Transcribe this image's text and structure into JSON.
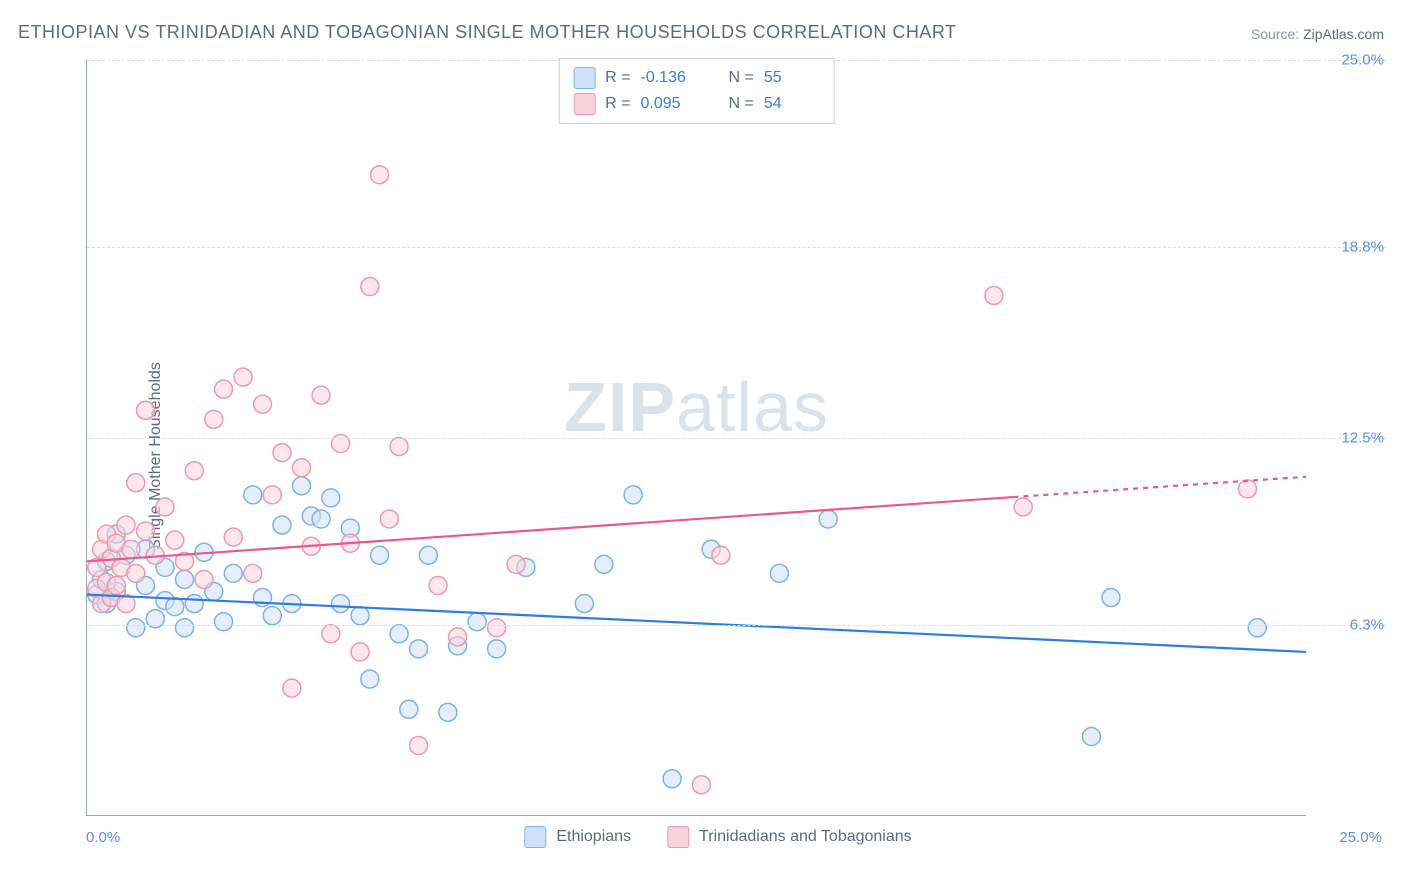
{
  "title": "ETHIOPIAN VS TRINIDADIAN AND TOBAGONIAN SINGLE MOTHER HOUSEHOLDS CORRELATION CHART",
  "source_label": "Source: ",
  "source_value": "ZipAtlas.com",
  "ylabel": "Single Mother Households",
  "watermark_a": "ZIP",
  "watermark_b": "atlas",
  "chart": {
    "type": "scatter",
    "xlim": [
      0,
      25
    ],
    "ylim": [
      0,
      25
    ],
    "yticks": [
      6.3,
      12.5,
      18.8,
      25.0
    ],
    "ytick_labels": [
      "6.3%",
      "12.5%",
      "18.8%",
      "25.0%"
    ],
    "xtick_min_label": "0.0%",
    "xtick_max_label": "25.0%",
    "grid_color": "#d9dee4",
    "axis_color": "#9aa6b2",
    "background_color": "#ffffff",
    "marker_radius": 9,
    "marker_stroke_width": 1.5,
    "series": [
      {
        "name": "Ethiopians",
        "fill": "#cfe2f7",
        "stroke": "#7fb1e8",
        "fill_opacity": 0.55,
        "r_label": "R = ",
        "r_value": "-0.136",
        "n_label": "N = ",
        "n_value": "55",
        "trend": {
          "y_at_x0": 7.3,
          "y_at_x25": 5.4,
          "stroke": "#2f7ed8",
          "width": 2.2,
          "solid_until_x": 25
        },
        "points": [
          [
            0.2,
            7.3
          ],
          [
            0.3,
            7.8
          ],
          [
            0.4,
            7.0
          ],
          [
            0.4,
            8.4
          ],
          [
            0.5,
            7.2
          ],
          [
            0.6,
            7.4
          ],
          [
            0.6,
            9.3
          ],
          [
            0.8,
            8.6
          ],
          [
            1.0,
            6.2
          ],
          [
            1.2,
            7.6
          ],
          [
            1.2,
            8.8
          ],
          [
            1.4,
            6.5
          ],
          [
            1.6,
            7.1
          ],
          [
            1.6,
            8.2
          ],
          [
            1.8,
            6.9
          ],
          [
            2.0,
            6.2
          ],
          [
            2.0,
            7.8
          ],
          [
            2.2,
            7.0
          ],
          [
            2.4,
            8.7
          ],
          [
            2.6,
            7.4
          ],
          [
            2.8,
            6.4
          ],
          [
            3.0,
            8.0
          ],
          [
            3.4,
            10.6
          ],
          [
            3.6,
            7.2
          ],
          [
            3.8,
            6.6
          ],
          [
            4.0,
            9.6
          ],
          [
            4.2,
            7.0
          ],
          [
            4.4,
            10.9
          ],
          [
            4.6,
            9.9
          ],
          [
            4.8,
            9.8
          ],
          [
            5.0,
            10.5
          ],
          [
            5.2,
            7.0
          ],
          [
            5.4,
            9.5
          ],
          [
            5.6,
            6.6
          ],
          [
            5.8,
            4.5
          ],
          [
            6.0,
            8.6
          ],
          [
            6.4,
            6.0
          ],
          [
            6.6,
            3.5
          ],
          [
            6.8,
            5.5
          ],
          [
            7.0,
            8.6
          ],
          [
            7.4,
            3.4
          ],
          [
            7.6,
            5.6
          ],
          [
            8.0,
            6.4
          ],
          [
            8.4,
            5.5
          ],
          [
            9.0,
            8.2
          ],
          [
            10.2,
            7.0
          ],
          [
            10.6,
            8.3
          ],
          [
            11.2,
            10.6
          ],
          [
            12.0,
            1.2
          ],
          [
            12.8,
            8.8
          ],
          [
            14.2,
            8.0
          ],
          [
            15.2,
            9.8
          ],
          [
            20.6,
            2.6
          ],
          [
            21.0,
            7.2
          ],
          [
            24.0,
            6.2
          ]
        ]
      },
      {
        "name": "Trinidadians and Tobagonians",
        "fill": "#f8d3dd",
        "stroke": "#ec9ab0",
        "fill_opacity": 0.55,
        "r_label": "R = ",
        "r_value": "0.095",
        "n_label": "N = ",
        "n_value": "54",
        "trend": {
          "y_at_x0": 8.4,
          "y_at_x25": 11.2,
          "stroke": "#e75a8d",
          "width": 2.2,
          "solid_until_x": 19
        },
        "points": [
          [
            0.2,
            7.5
          ],
          [
            0.2,
            8.2
          ],
          [
            0.3,
            7.0
          ],
          [
            0.3,
            8.8
          ],
          [
            0.4,
            7.7
          ],
          [
            0.4,
            9.3
          ],
          [
            0.5,
            8.5
          ],
          [
            0.5,
            7.2
          ],
          [
            0.6,
            9.0
          ],
          [
            0.6,
            7.6
          ],
          [
            0.7,
            8.2
          ],
          [
            0.8,
            9.6
          ],
          [
            0.8,
            7.0
          ],
          [
            0.9,
            8.8
          ],
          [
            1.0,
            8.0
          ],
          [
            1.0,
            11.0
          ],
          [
            1.2,
            9.4
          ],
          [
            1.2,
            13.4
          ],
          [
            1.4,
            8.6
          ],
          [
            1.6,
            10.2
          ],
          [
            1.8,
            9.1
          ],
          [
            2.0,
            8.4
          ],
          [
            2.2,
            11.4
          ],
          [
            2.4,
            7.8
          ],
          [
            2.6,
            13.1
          ],
          [
            2.8,
            14.1
          ],
          [
            3.0,
            9.2
          ],
          [
            3.2,
            14.5
          ],
          [
            3.4,
            8.0
          ],
          [
            3.6,
            13.6
          ],
          [
            3.8,
            10.6
          ],
          [
            4.0,
            12.0
          ],
          [
            4.2,
            4.2
          ],
          [
            4.4,
            11.5
          ],
          [
            4.6,
            8.9
          ],
          [
            4.8,
            13.9
          ],
          [
            5.0,
            6.0
          ],
          [
            5.2,
            12.3
          ],
          [
            5.4,
            9.0
          ],
          [
            5.6,
            5.4
          ],
          [
            5.8,
            17.5
          ],
          [
            6.0,
            21.2
          ],
          [
            6.2,
            9.8
          ],
          [
            6.4,
            12.2
          ],
          [
            6.8,
            2.3
          ],
          [
            7.2,
            7.6
          ],
          [
            7.6,
            5.9
          ],
          [
            8.4,
            6.2
          ],
          [
            8.8,
            8.3
          ],
          [
            12.6,
            1.0
          ],
          [
            13.0,
            8.6
          ],
          [
            18.6,
            17.2
          ],
          [
            19.2,
            10.2
          ],
          [
            23.8,
            10.8
          ]
        ]
      }
    ]
  },
  "legend_bottom": [
    {
      "label": "Ethiopians",
      "fill": "#cfe2f7",
      "stroke": "#7fb1e8"
    },
    {
      "label": "Trinidadians and Tobagonians",
      "fill": "#f8d3dd",
      "stroke": "#ec9ab0"
    }
  ]
}
